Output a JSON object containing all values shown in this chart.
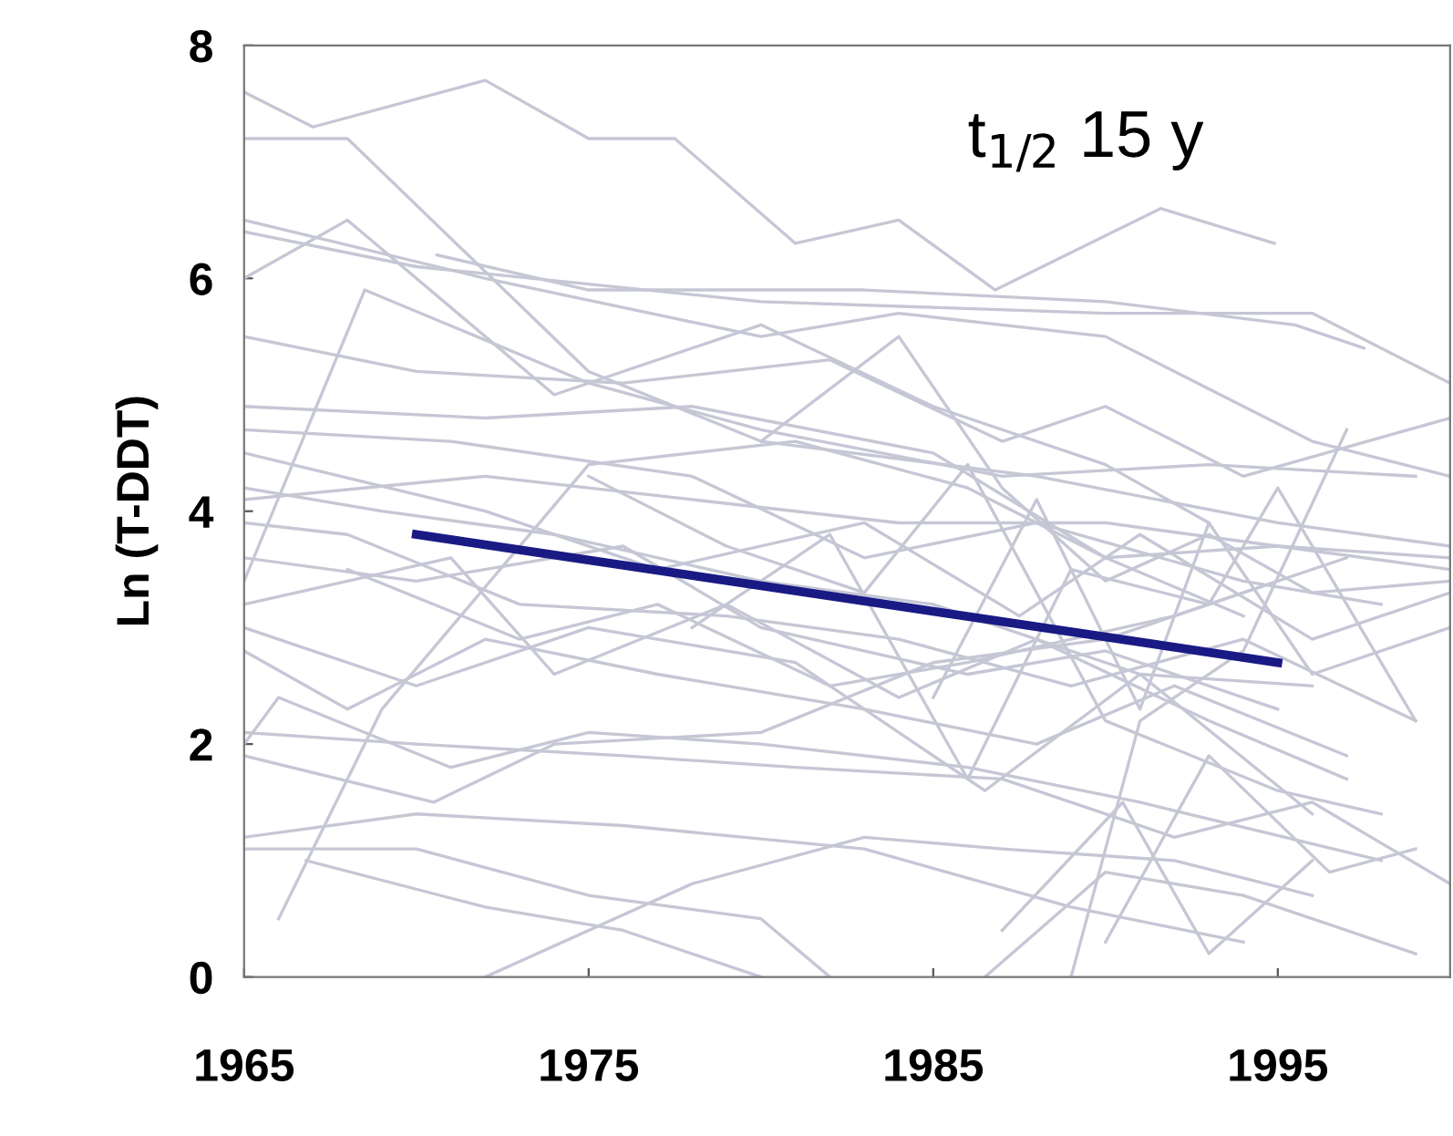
{
  "chart_data": {
    "type": "line",
    "ylabel": "Ln (T-DDT)",
    "annotations": [
      "t$_{1/2}$ 15 y"
    ],
    "xlim": [
      1965,
      2000
    ],
    "xticks": [
      1965,
      1975,
      1985,
      1995
    ],
    "ylim": [
      0,
      8
    ],
    "yticks": [
      0,
      2,
      4,
      6,
      8
    ],
    "grid": false,
    "legend": false,
    "marker": "none",
    "line_style": "solid",
    "series": [
      {
        "color": "#c6c7d5",
        "x": [
          1965,
          1967,
          1972,
          1975,
          1977.5,
          1981,
          1984,
          1986.8,
          1991.6,
          1994.9
        ],
        "values": [
          7.6,
          7.3,
          7.7,
          7.2,
          7.2,
          6.3,
          6.5,
          5.9,
          6.6,
          6.3
        ]
      },
      {
        "color": "#c6c7d5",
        "x": [
          1965,
          1968,
          1975,
          1980,
          1988,
          1995,
          2000
        ],
        "values": [
          7.2,
          7.2,
          5.2,
          4.6,
          4.3,
          3.9,
          3.7
        ]
      },
      {
        "color": "#c6c7d5",
        "x": [
          1965,
          1970,
          1980,
          1990,
          1996,
          2000
        ],
        "values": [
          6.4,
          6.1,
          5.8,
          5.7,
          5.7,
          5.1
        ]
      },
      {
        "color": "#c6c7d5",
        "x": [
          1970.6,
          1975,
          1983,
          1990,
          1995.5,
          1997.5
        ],
        "values": [
          6.2,
          5.9,
          5.9,
          5.8,
          5.6,
          5.4
        ]
      },
      {
        "color": "#c6c7d5",
        "x": [
          1965,
          1972,
          1980,
          1984,
          1990,
          1996,
          2000
        ],
        "values": [
          6.5,
          6.0,
          5.5,
          5.7,
          5.5,
          4.6,
          4.3
        ]
      },
      {
        "color": "#c6c7d5",
        "x": [
          1965,
          1968,
          1974,
          1980,
          1985,
          1990,
          1993
        ],
        "values": [
          6.0,
          6.5,
          5.0,
          5.6,
          4.9,
          4.4,
          3.9
        ]
      },
      {
        "color": "#c6c7d5",
        "x": [
          1965,
          1970,
          1976,
          1982,
          1987,
          1990,
          1994,
          2000
        ],
        "values": [
          5.5,
          5.2,
          5.1,
          5.3,
          4.6,
          4.9,
          4.3,
          4.8
        ]
      },
      {
        "color": "#c6c7d5",
        "x": [
          1965,
          1968.5,
          1975,
          1980,
          1987,
          1993,
          1999
        ],
        "values": [
          3.4,
          5.9,
          5.1,
          4.7,
          4.3,
          4.4,
          4.3
        ]
      },
      {
        "color": "#c6c7d5",
        "x": [
          1965,
          1972,
          1978,
          1985,
          1990,
          1995,
          2000
        ],
        "values": [
          4.9,
          4.8,
          4.9,
          4.5,
          3.6,
          3.7,
          3.6
        ]
      },
      {
        "color": "#c6c7d5",
        "x": [
          1965,
          1971,
          1978,
          1983,
          1988,
          1994,
          1998
        ],
        "values": [
          4.7,
          4.6,
          4.3,
          3.6,
          3.9,
          3.4,
          3.2
        ]
      },
      {
        "color": "#c6c7d5",
        "x": [
          1965,
          1972,
          1977,
          1983,
          1987.5,
          1991,
          1996,
          2000
        ],
        "values": [
          4.5,
          4.0,
          3.5,
          3.9,
          3.1,
          3.8,
          2.9,
          3.3
        ]
      },
      {
        "color": "#c6c7d5",
        "x": [
          1965,
          1969,
          1974,
          1980,
          1985,
          1991,
          1996
        ],
        "values": [
          4.2,
          4.0,
          3.8,
          3.4,
          3.2,
          2.6,
          2.5
        ]
      },
      {
        "color": "#c6c7d5",
        "x": [
          1965,
          1968,
          1973,
          1979,
          1984,
          1989,
          1994,
          1999
        ],
        "values": [
          3.9,
          3.8,
          3.2,
          3.1,
          2.9,
          2.5,
          2.9,
          2.2
        ]
      },
      {
        "color": "#c6c7d5",
        "x": [
          1965,
          1970,
          1976,
          1980,
          1986,
          1990,
          1995
        ],
        "values": [
          3.6,
          3.4,
          3.7,
          3.0,
          2.6,
          2.8,
          2.3
        ]
      },
      {
        "color": "#c6c7d5",
        "x": [
          1965,
          1971,
          1974,
          1979,
          1984,
          1988,
          1993,
          1997
        ],
        "values": [
          3.2,
          3.6,
          2.6,
          3.2,
          2.4,
          2.9,
          2.2,
          1.7
        ]
      },
      {
        "color": "#c6c7d5",
        "x": [
          1965,
          1970,
          1975,
          1981,
          1986.5,
          1991,
          1996
        ],
        "values": [
          3.0,
          2.5,
          3.0,
          2.7,
          1.6,
          2.6,
          1.4
        ]
      },
      {
        "color": "#c6c7d5",
        "x": [
          1965,
          1968,
          1972,
          1977,
          1983,
          1988,
          1992,
          1997
        ],
        "values": [
          2.8,
          2.3,
          2.9,
          2.6,
          2.3,
          2.0,
          2.5,
          1.9
        ]
      },
      {
        "color": "#c6c7d5",
        "x": [
          1965,
          1966,
          1971,
          1975,
          1980,
          1986,
          1991,
          1998
        ],
        "values": [
          2.0,
          2.4,
          1.8,
          2.1,
          2.0,
          1.8,
          1.5,
          1.0
        ]
      },
      {
        "color": "#c6c7d5",
        "x": [
          1965,
          1970,
          1976,
          1981,
          1987,
          1992,
          1996,
          2000
        ],
        "values": [
          2.1,
          2.0,
          1.9,
          1.8,
          1.7,
          1.2,
          1.5,
          0.8
        ]
      },
      {
        "color": "#c6c7d5",
        "x": [
          1965,
          1970.5,
          1974,
          1980,
          1985,
          1990,
          1995
        ],
        "values": [
          1.9,
          1.5,
          2.0,
          2.1,
          2.7,
          2.9,
          3.4
        ]
      },
      {
        "color": "#c6c7d5",
        "x": [
          1965,
          1970,
          1976,
          1983,
          1989,
          1994
        ],
        "values": [
          1.2,
          1.4,
          1.3,
          1.1,
          0.6,
          0.3
        ]
      },
      {
        "color": "#c6c7d5",
        "x": [
          1965,
          1970,
          1975,
          1980,
          1982
        ],
        "values": [
          1.1,
          1.1,
          0.7,
          0.5,
          0
        ]
      },
      {
        "color": "#c6c7d5",
        "x": [
          1966.8,
          1972,
          1976,
          1980
        ],
        "values": [
          1.0,
          0.6,
          0.4,
          0
        ]
      },
      {
        "color": "#c6c7d5",
        "x": [
          1972,
          1978,
          1983,
          1987,
          1992,
          1996
        ],
        "values": [
          0,
          0.8,
          1.2,
          1.1,
          1.0,
          0.7
        ]
      },
      {
        "color": "#c6c7d5",
        "x": [
          1986.5,
          1990,
          1994,
          1999
        ],
        "values": [
          0,
          0.9,
          0.7,
          0.2
        ]
      },
      {
        "color": "#c6c7d5",
        "x": [
          1987,
          1990.5,
          1993,
          1996
        ],
        "values": [
          0.4,
          1.5,
          0.2,
          1.0
        ]
      },
      {
        "color": "#c6c7d5",
        "x": [
          1990,
          1993,
          1996.5,
          1999
        ],
        "values": [
          0.3,
          1.9,
          0.9,
          1.1
        ]
      },
      {
        "color": "#c6c7d5",
        "x": [
          1989,
          1991,
          1994,
          1997
        ],
        "values": [
          0,
          2.2,
          2.8,
          4.7
        ]
      },
      {
        "color": "#c6c7d5",
        "x": [
          1985,
          1988,
          1991,
          1993,
          1996,
          2000
        ],
        "values": [
          2.4,
          4.1,
          2.3,
          3.9,
          2.6,
          3.0
        ]
      },
      {
        "color": "#c6c7d5",
        "x": [
          1980,
          1984,
          1987,
          1990,
          1993,
          1996,
          2000
        ],
        "values": [
          4.6,
          5.5,
          4.2,
          3.4,
          3.8,
          3.3,
          3.4
        ]
      },
      {
        "color": "#c6c7d5",
        "x": [
          1978,
          1982,
          1986,
          1989,
          1993,
          1995,
          1999
        ],
        "values": [
          3.0,
          3.8,
          1.7,
          3.5,
          3.2,
          4.2,
          2.2
        ]
      },
      {
        "color": "#c6c7d5",
        "x": [
          1975,
          1979,
          1983,
          1986,
          1990,
          1995,
          1998
        ],
        "values": [
          4.3,
          3.7,
          3.3,
          4.4,
          2.2,
          1.6,
          1.4
        ]
      },
      {
        "color": "#c6c7d5",
        "x": [
          1968,
          1973,
          1977,
          1982,
          1986,
          1992,
          1997
        ],
        "values": [
          3.5,
          2.9,
          3.2,
          2.5,
          2.7,
          3.1,
          3.6
        ]
      },
      {
        "color": "#c6c7d5",
        "x": [
          1966,
          1969,
          1975,
          1981,
          1986,
          1990,
          1994
        ],
        "values": [
          0.5,
          2.3,
          4.4,
          4.6,
          4.2,
          3.6,
          3.1
        ]
      },
      {
        "color": "#c6c7d5",
        "x": [
          1965,
          1972,
          1978,
          1984,
          1990,
          1995,
          2000
        ],
        "values": [
          4.1,
          4.3,
          4.1,
          3.9,
          3.9,
          3.7,
          3.5
        ]
      },
      {
        "color": "#1a1a85",
        "x": [
          1970,
          1995
        ],
        "values": [
          3.8,
          2.7
        ]
      }
    ]
  }
}
